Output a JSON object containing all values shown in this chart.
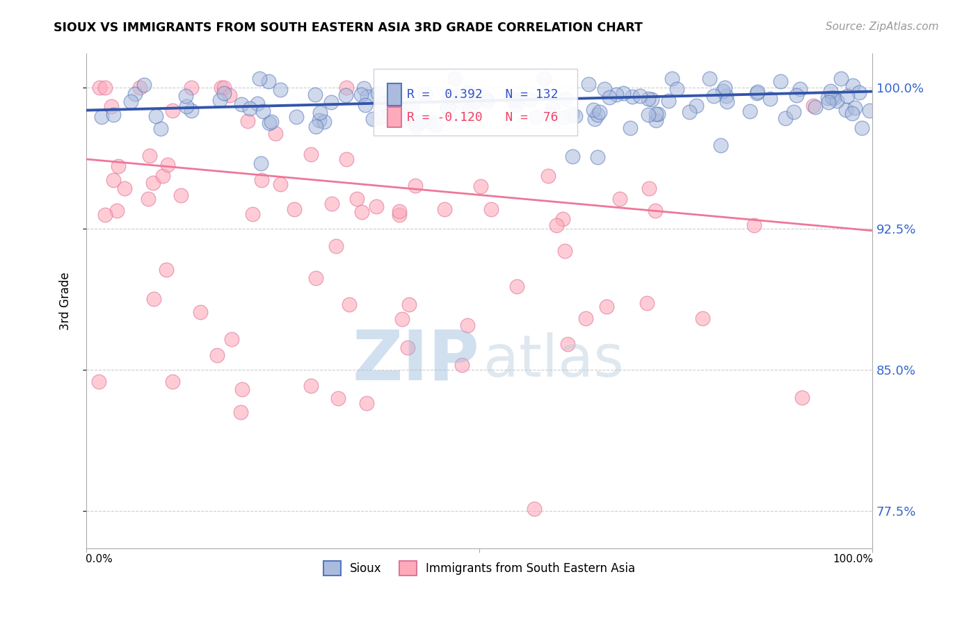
{
  "title": "SIOUX VS IMMIGRANTS FROM SOUTH EASTERN ASIA 3RD GRADE CORRELATION CHART",
  "source": "Source: ZipAtlas.com",
  "ylabel": "3rd Grade",
  "ytick_labels": [
    "77.5%",
    "85.0%",
    "92.5%",
    "100.0%"
  ],
  "ytick_values": [
    0.775,
    0.85,
    0.925,
    1.0
  ],
  "ymin": 0.755,
  "ymax": 1.018,
  "xmin": 0.0,
  "xmax": 1.0,
  "blue_R": 0.392,
  "blue_N": 132,
  "pink_R": -0.12,
  "pink_N": 76,
  "blue_color": "#aabbdd",
  "pink_color": "#ffaabb",
  "blue_edge_color": "#5577bb",
  "pink_edge_color": "#dd7799",
  "blue_line_color": "#3355aa",
  "pink_line_color": "#ee7799",
  "blue_line_y0": 0.988,
  "blue_line_y1": 0.998,
  "pink_line_y0": 0.962,
  "pink_line_y1": 0.924,
  "watermark_zip_color": "#99bbdd",
  "watermark_atlas_color": "#bbccdd",
  "legend1": "Sioux",
  "legend2": "Immigrants from South Eastern Asia"
}
